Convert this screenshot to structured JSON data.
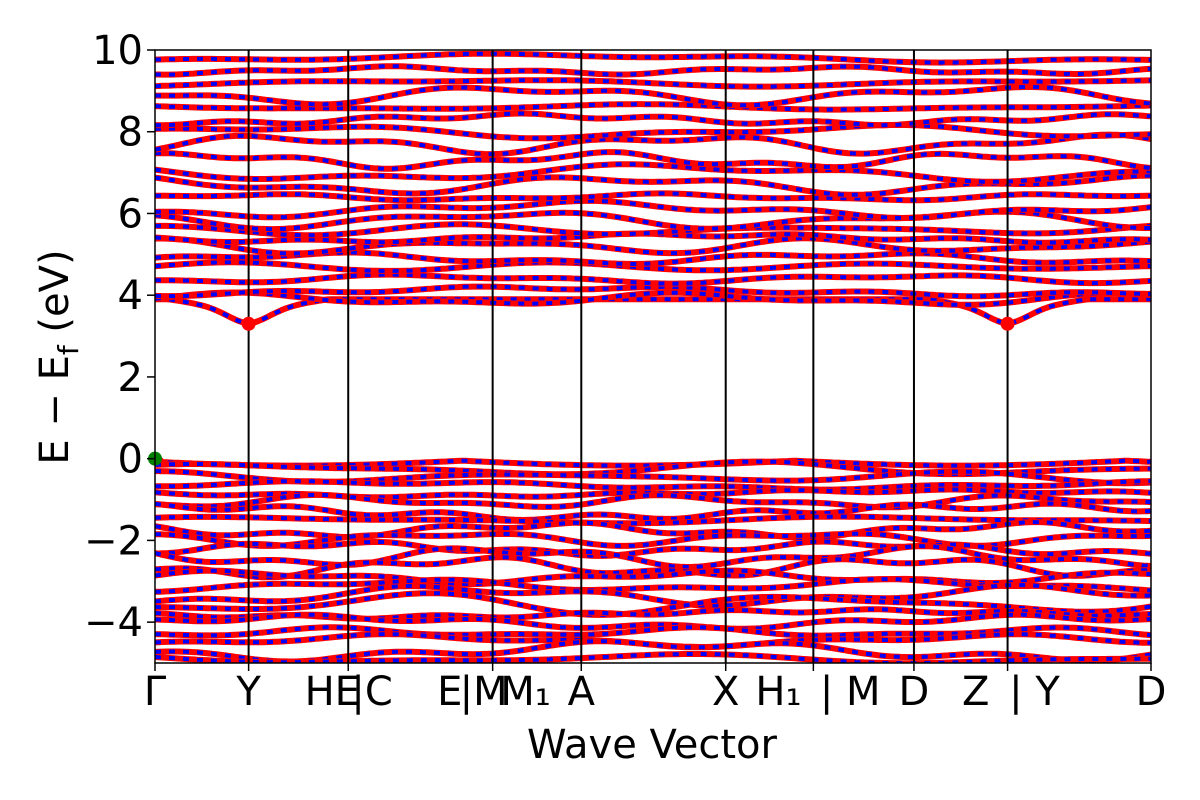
{
  "chart_data": {
    "type": "line",
    "title": "",
    "xlabel": "Wave Vector",
    "ylabel": "E − E_f (eV)",
    "ylabel_main": "E − E",
    "ylabel_sub": "f",
    "ylabel_unit": " (eV)",
    "ylim": [
      -5,
      10
    ],
    "yticks": [
      -4,
      -2,
      0,
      2,
      4,
      6,
      8,
      10
    ],
    "ytick_labels": [
      "−4",
      "−2",
      "0",
      "2",
      "4",
      "6",
      "8",
      "10"
    ],
    "x_range": [
      0,
      1
    ],
    "high_symmetry_points": [
      {
        "x": 0.0,
        "label": "Γ"
      },
      {
        "x": 0.094,
        "label": "Y"
      },
      {
        "x": 0.194,
        "label": "H|E|C"
      },
      {
        "x": 0.339,
        "label": "E|M|M₁"
      },
      {
        "x": 0.428,
        "label": "A"
      },
      {
        "x": 0.573,
        "label": "X"
      },
      {
        "x": 0.661,
        "label": "H₁|M"
      },
      {
        "x": 0.762,
        "label": "D"
      },
      {
        "x": 0.856,
        "label": "Z|Y"
      },
      {
        "x": 1.0,
        "label": "D"
      }
    ],
    "tick_labels_display": [
      "Γ",
      "Y",
      "HE",
      "|C",
      "E",
      "|M",
      "M₁",
      "A",
      "X",
      "H₁",
      "| M",
      "D",
      "Z",
      "| Y",
      "D"
    ],
    "vbm_energy": 0.0,
    "cbm_energy": 3.3,
    "band_gap_eV": 3.3,
    "vbm_marker": {
      "x": 0.0,
      "y": 0.0,
      "color": "#008000"
    },
    "cbm_markers": [
      {
        "x": 0.094,
        "y": 3.3,
        "color": "#ff0000"
      },
      {
        "x": 0.856,
        "y": 3.3,
        "color": "#ff0000"
      }
    ],
    "conduction_band_levels": [
      3.6,
      3.9,
      4.1,
      4.4,
      4.7,
      4.9,
      5.2,
      5.4,
      5.6,
      5.85,
      6.1,
      6.4,
      6.7,
      7.0,
      7.3,
      7.7,
      8.0,
      8.3,
      8.6,
      8.9,
      9.2,
      9.5,
      9.8
    ],
    "valence_band_levels": [
      -0.05,
      -0.25,
      -0.45,
      -0.65,
      -0.85,
      -1.05,
      -1.3,
      -1.5,
      -1.75,
      -1.95,
      -2.2,
      -2.4,
      -2.65,
      -2.9,
      -3.1,
      -3.35,
      -3.55,
      -3.8,
      -4.0,
      -4.25,
      -4.45,
      -4.7,
      -4.9
    ],
    "series": [
      {
        "color": "#ff0000",
        "style": "solid"
      },
      {
        "color": "#0000ff",
        "style": "dashed"
      }
    ]
  }
}
